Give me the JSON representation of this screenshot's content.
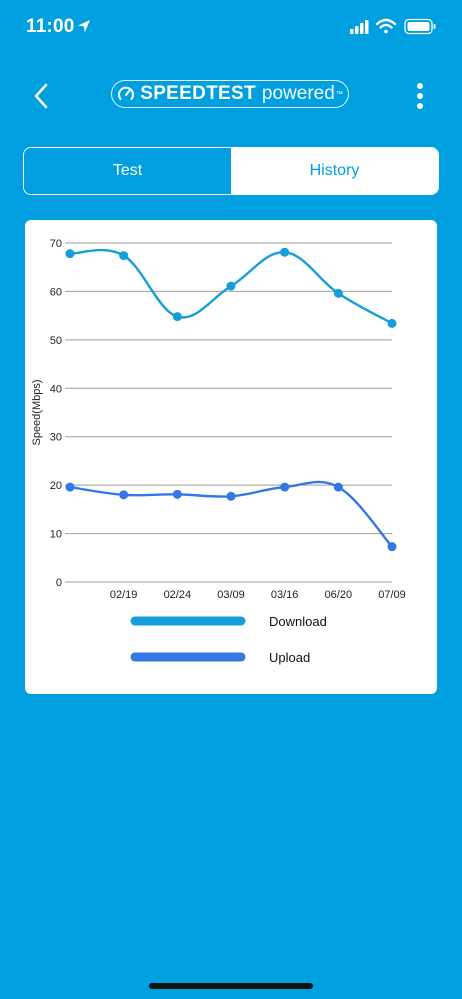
{
  "status_bar": {
    "time": "11:00"
  },
  "nav": {
    "logo_brand": "SPEEDTEST",
    "logo_powered": "powered",
    "logo_tm": "™"
  },
  "tabs": [
    {
      "label": "Test",
      "active": true
    },
    {
      "label": "History",
      "active": false
    }
  ],
  "colors": {
    "background": "#00A0E0",
    "download": "#159FD8",
    "upload": "#3377E8",
    "grid": "#9E9E9E"
  },
  "chart_data": {
    "type": "line",
    "ylabel": "Speed(Mbps)",
    "xlabel": "",
    "ylim": [
      0,
      70
    ],
    "yticks": [
      0,
      10,
      20,
      30,
      40,
      50,
      60,
      70
    ],
    "categories": [
      "",
      "02/19",
      "02/24",
      "03/09",
      "03/16",
      "06/20",
      "07/09"
    ],
    "grid": true,
    "legend_position": "bottom",
    "series": [
      {
        "name": "Download",
        "values": [
          67.8,
          67.4,
          54.8,
          61.1,
          68.1,
          59.6,
          53.4
        ]
      },
      {
        "name": "Upload",
        "values": [
          19.6,
          18.0,
          18.1,
          17.7,
          19.6,
          19.6,
          7.3
        ]
      }
    ]
  }
}
